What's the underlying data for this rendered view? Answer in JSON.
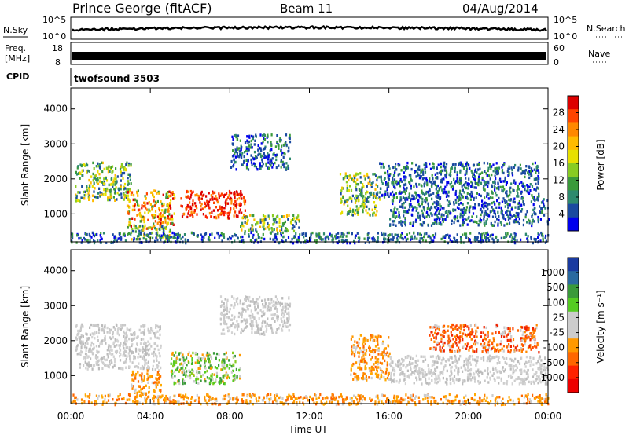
{
  "header": {
    "station": "Prince George (fitACF)",
    "beam": "Beam 11",
    "date": "04/Aug/2014"
  },
  "strips": {
    "nsky": {
      "label": "N.Sky",
      "ticks": [
        "10^5",
        "10^0"
      ]
    },
    "nsearch": {
      "label": "N.Search",
      "ticks": [
        "10^5",
        "10^0"
      ]
    },
    "freq": {
      "label_top": "Freq.",
      "label_unit": "[MHz]",
      "ticks": [
        "18",
        "8"
      ]
    },
    "nave": {
      "label": "Nave",
      "ticks": [
        "60",
        "0"
      ]
    },
    "cpid": {
      "label": "CPID",
      "value": "twofsound 3503"
    }
  },
  "chart_data": [
    {
      "type": "heatmap",
      "name": "power",
      "ylabel": "Slant Range [km]",
      "ylim": [
        200,
        4600
      ],
      "yticks": [
        "4000",
        "3000",
        "2000",
        "1000"
      ],
      "yvalues": [
        4000,
        3000,
        2000,
        1000
      ],
      "xlim": [
        "00:00",
        "24:00"
      ],
      "colorbar": {
        "label": "Power [dB]",
        "ticks": [
          "28",
          "24",
          "20",
          "16",
          "12",
          "8",
          "4"
        ],
        "colors": [
          "#dd0000",
          "#ff4400",
          "#ff8800",
          "#ffbb00",
          "#e8e000",
          "#88cc22",
          "#3a9a3a",
          "#2e8a6e",
          "#1a4aa0",
          "#0000ee"
        ]
      },
      "echo_regions": [
        {
          "t0": 0.2,
          "t1": 3.0,
          "r0": 1400,
          "r1": 2500,
          "level": "mid"
        },
        {
          "t0": 2.8,
          "t1": 5.2,
          "r0": 600,
          "r1": 1700,
          "level": "high"
        },
        {
          "t0": 3.0,
          "t1": 5.0,
          "r0": 300,
          "r1": 700,
          "level": "mid"
        },
        {
          "t0": 5.5,
          "t1": 8.8,
          "r0": 900,
          "r1": 1700,
          "level": "peak"
        },
        {
          "t0": 8.0,
          "t1": 11.0,
          "r0": 2300,
          "r1": 3300,
          "level": "low"
        },
        {
          "t0": 8.5,
          "t1": 11.5,
          "r0": 500,
          "r1": 1000,
          "level": "mid"
        },
        {
          "t0": 13.5,
          "t1": 15.5,
          "r0": 1000,
          "r1": 2200,
          "level": "mid"
        },
        {
          "t0": 15.5,
          "t1": 23.5,
          "r0": 1500,
          "r1": 2500,
          "level": "low"
        },
        {
          "t0": 16.0,
          "t1": 24.0,
          "r0": 700,
          "r1": 1500,
          "level": "low"
        },
        {
          "t0": 0.0,
          "t1": 24.0,
          "r0": 200,
          "r1": 500,
          "level": "low"
        }
      ]
    },
    {
      "type": "heatmap",
      "name": "velocity",
      "ylabel": "Slant Range [km]",
      "ylim": [
        200,
        4600
      ],
      "yticks": [
        "4000",
        "3000",
        "2000",
        "1000"
      ],
      "yvalues": [
        4000,
        3000,
        2000,
        1000
      ],
      "xlabel": "Time UT",
      "xticks": [
        "00:00",
        "04:00",
        "08:00",
        "12:00",
        "16:00",
        "20:00",
        "00:00"
      ],
      "xvalues": [
        0,
        4,
        8,
        12,
        16,
        20,
        24
      ],
      "colorbar": {
        "label": "Velocity [m s⁻¹]",
        "ticks": [
          "1000",
          "500",
          "100",
          "25",
          "-25",
          "-100",
          "-500",
          "-1000"
        ],
        "colors": [
          "#1a3aa0",
          "#2a6aa0",
          "#3a9a3a",
          "#55cc22",
          "#cccccc",
          "#cccccc",
          "#ff9900",
          "#ff6600",
          "#ff2200",
          "#ee0000"
        ]
      },
      "echo_regions": [
        {
          "t0": 0.2,
          "t1": 4.5,
          "r0": 1200,
          "r1": 2500,
          "level": "gray"
        },
        {
          "t0": 3.0,
          "t1": 4.5,
          "r0": 500,
          "r1": 1200,
          "level": "orange"
        },
        {
          "t0": 5.0,
          "t1": 8.5,
          "r0": 800,
          "r1": 1700,
          "level": "green"
        },
        {
          "t0": 7.5,
          "t1": 11.0,
          "r0": 2200,
          "r1": 3300,
          "level": "gray"
        },
        {
          "t0": 14.0,
          "t1": 16.0,
          "r0": 900,
          "r1": 2200,
          "level": "orange"
        },
        {
          "t0": 18.0,
          "t1": 23.5,
          "r0": 1700,
          "r1": 2500,
          "level": "red"
        },
        {
          "t0": 16.0,
          "t1": 24.0,
          "r0": 800,
          "r1": 1600,
          "level": "gray"
        },
        {
          "t0": 0.0,
          "t1": 24.0,
          "r0": 200,
          "r1": 500,
          "level": "orange"
        }
      ]
    }
  ]
}
